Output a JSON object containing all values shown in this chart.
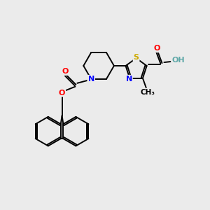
{
  "background_color": "#ebebeb",
  "bond_color": "#000000",
  "atom_colors": {
    "N": "#0000ff",
    "O": "#ff0000",
    "S": "#ccaa00",
    "H": "#5fa8a8",
    "C": "#000000"
  },
  "figsize": [
    3.0,
    3.0
  ],
  "dpi": 100,
  "font_size": 8.0,
  "lw": 1.4
}
